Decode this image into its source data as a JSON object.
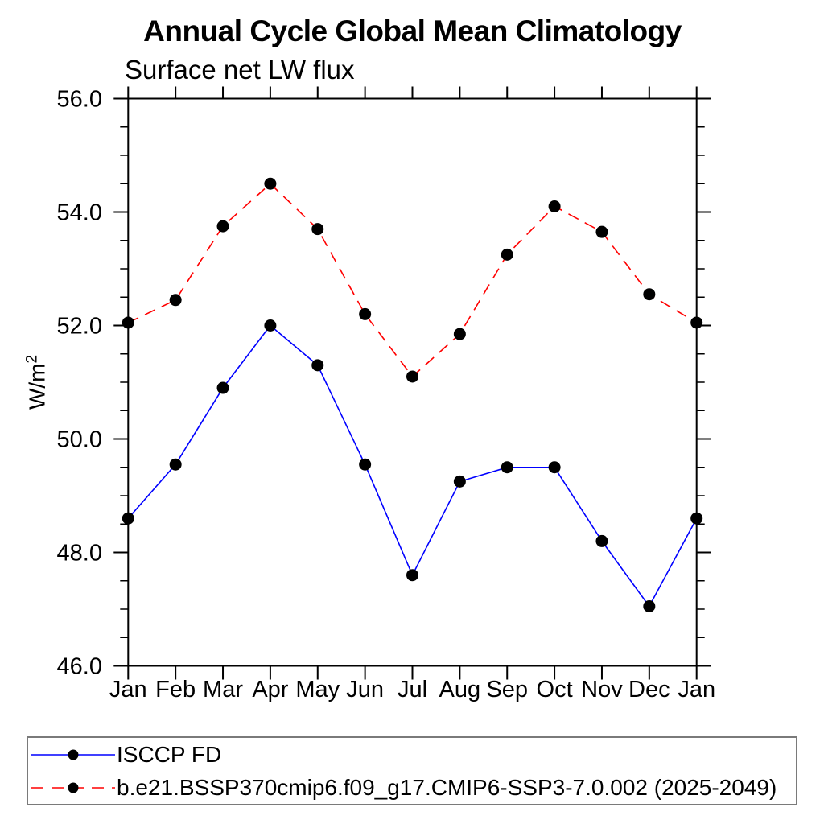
{
  "chart": {
    "title": "Annual Cycle Global Mean Climatology",
    "subtitle": "Surface net LW flux"
  },
  "chart_data": {
    "type": "line",
    "title": "Annual Cycle Global Mean Climatology",
    "subtitle": "Surface net LW flux",
    "ylabel": "W/m²",
    "ylabel_parts": {
      "base": "W/m",
      "sup": "2"
    },
    "xlabel": "",
    "categories": [
      "Jan",
      "Feb",
      "Mar",
      "Apr",
      "May",
      "Jun",
      "Jul",
      "Aug",
      "Sep",
      "Oct",
      "Nov",
      "Dec",
      "Jan"
    ],
    "series": [
      {
        "name": "ISCCP FD",
        "color": "#0000ff",
        "line_style": "solid",
        "marker": "circle",
        "marker_color": "#000000",
        "values": [
          48.6,
          49.55,
          50.9,
          52.0,
          51.3,
          49.55,
          47.6,
          49.25,
          49.5,
          49.5,
          48.2,
          47.05,
          48.6
        ]
      },
      {
        "name": "b.e21.BSSP370cmip6.f09_g17.CMIP6-SSP3-7.0.002 (2025-2049)",
        "color": "#ff0000",
        "line_style": "dashed",
        "marker": "circle",
        "marker_color": "#000000",
        "values": [
          52.05,
          52.45,
          53.75,
          54.5,
          53.7,
          52.2,
          51.1,
          51.85,
          53.25,
          54.1,
          53.65,
          52.55,
          52.05
        ]
      }
    ],
    "ylim": [
      46.0,
      56.0
    ],
    "ytick_major_values": [
      46.0,
      48.0,
      50.0,
      52.0,
      54.0,
      56.0
    ],
    "ytick_labels": [
      "46.0",
      "48.0",
      "50.0",
      "52.0",
      "54.0",
      "56.0"
    ],
    "ytick_minor_step": 0.5,
    "grid": false,
    "legend_position": "bottom-left-box",
    "frame_color": "#000000",
    "legend_border_color": "#7a7a7a"
  }
}
